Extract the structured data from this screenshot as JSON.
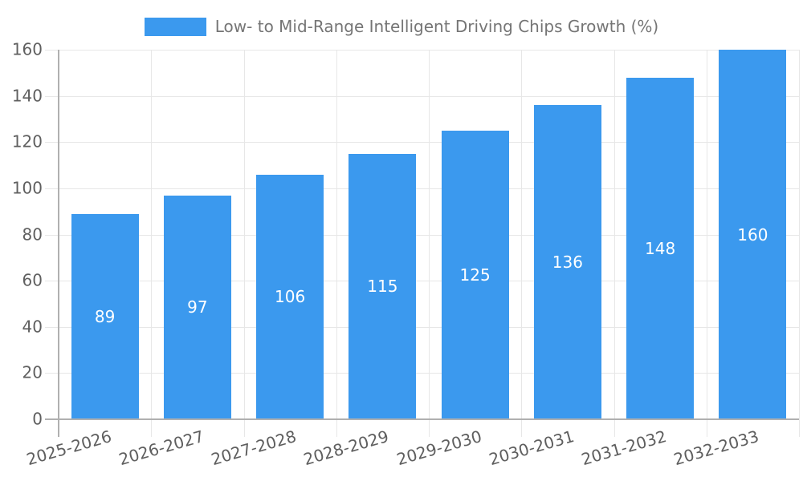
{
  "chart_data": {
    "type": "bar",
    "title": "Low- to Mid-Range Intelligent Driving Chips Growth (%)",
    "categories": [
      "2025-2026",
      "2026-2027",
      "2027-2028",
      "2028-2029",
      "2029-2030",
      "2030-2031",
      "2031-2032",
      "2032-2033"
    ],
    "values": [
      89,
      97,
      106,
      115,
      125,
      136,
      148,
      160
    ],
    "xlabel": "",
    "ylabel": "",
    "ylim": [
      0,
      160
    ],
    "yticks": [
      0,
      20,
      40,
      60,
      80,
      100,
      120,
      140,
      160
    ],
    "grid": true,
    "legend_position": "top-center",
    "value_labels": "inside-center",
    "colors": {
      "bar": "#3b99ee",
      "value_text": "#ffffff",
      "axis": "#b0b0b0",
      "gridline": "#e7e7e7",
      "tick_text": "#5f5f5f",
      "legend_text": "#757575"
    }
  }
}
